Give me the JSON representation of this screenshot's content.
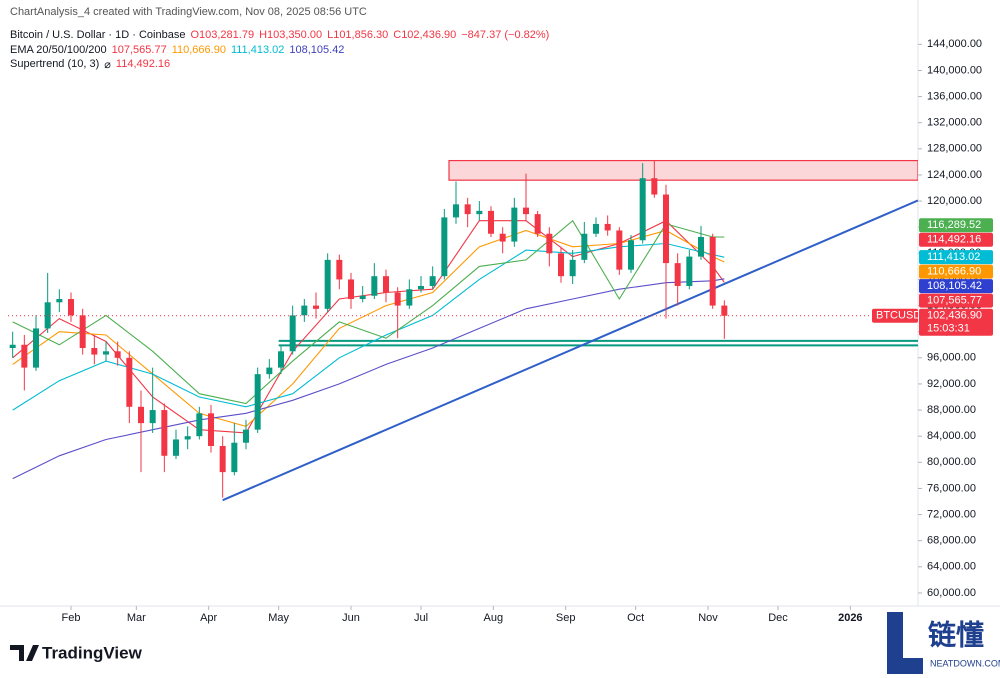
{
  "header": {
    "credit": "ChartAnalysis_4 created with TradingView.com, Nov 08, 2025 08:56 UTC",
    "symbol": "Bitcoin / U.S. Dollar · 1D · Coinbase",
    "ohlc": [
      "O103,281.79",
      "H103,350.00",
      "L101,856.30",
      "C102,436.90",
      "−847.37 (−0.82%)"
    ],
    "ema_label": "EMA 20/50/100/200",
    "ema_values": [
      {
        "text": "107,565.77",
        "color": "#f23645"
      },
      {
        "text": "110,666.90",
        "color": "#ff9800"
      },
      {
        "text": "111,413.02",
        "color": "#00bcd4"
      },
      {
        "text": "108,105.42",
        "color": "#3f3fbf"
      }
    ],
    "supertrend_label": "Supertrend (10, 3)",
    "supertrend_symbol": "⌀",
    "supertrend_value": "114,492.16"
  },
  "chart_data": {
    "type": "candlestick",
    "x": [
      6,
      11,
      16,
      21,
      26,
      31,
      36,
      41,
      46,
      51,
      56,
      61,
      66,
      71,
      76,
      81,
      86,
      91,
      96,
      101,
      106,
      111,
      116,
      121,
      126,
      131,
      136,
      141,
      146,
      151,
      156,
      161,
      166,
      171,
      176,
      181,
      186,
      191,
      196,
      201,
      206,
      211,
      216,
      221,
      226,
      231,
      236,
      241,
      246,
      251,
      256,
      261,
      266,
      271,
      276,
      281,
      286,
      291,
      296,
      301,
      306,
      311
    ],
    "open": [
      97500,
      98000,
      94500,
      100500,
      104500,
      105000,
      102500,
      97500,
      96500,
      97000,
      96000,
      88500,
      86000,
      88000,
      81000,
      83500,
      84000,
      87500,
      82500,
      78500,
      83000,
      85000,
      93500,
      94500,
      97000,
      102500,
      104000,
      103500,
      111000,
      108000,
      105000,
      105500,
      108500,
      106000,
      104000,
      106500,
      107000,
      108500,
      117500,
      119500,
      118000,
      118500,
      115000,
      113800,
      119000,
      118000,
      115000,
      112000,
      108500,
      111000,
      115000,
      116500,
      115500,
      109500,
      114000,
      123500,
      121000,
      110500,
      107000,
      111500,
      114500,
      104000
    ],
    "high": [
      100000,
      99500,
      102500,
      109000,
      106500,
      106000,
      103500,
      99500,
      98500,
      98500,
      97000,
      91000,
      94500,
      89000,
      85000,
      85500,
      88500,
      88800,
      84000,
      86000,
      86500,
      94500,
      95800,
      97800,
      104000,
      105000,
      106000,
      112000,
      111800,
      109000,
      107000,
      110500,
      109500,
      106800,
      108000,
      108500,
      110000,
      118800,
      123000,
      120500,
      120000,
      119200,
      116000,
      120500,
      124200,
      118500,
      116000,
      113000,
      112500,
      116800,
      117500,
      117800,
      116000,
      114800,
      125800,
      126200,
      122500,
      112000,
      112500,
      116200,
      115000,
      104800
    ],
    "low": [
      96000,
      91000,
      94000,
      99800,
      103000,
      101500,
      96500,
      95000,
      95500,
      94800,
      86000,
      78500,
      84500,
      78500,
      80500,
      82000,
      83500,
      81500,
      74600,
      78000,
      82000,
      84500,
      92800,
      93500,
      96500,
      101500,
      102000,
      103000,
      106500,
      103500,
      104500,
      105000,
      104500,
      99000,
      103500,
      106000,
      106500,
      108000,
      116500,
      116000,
      117000,
      114500,
      112000,
      113000,
      117000,
      114500,
      110000,
      107500,
      107300,
      110500,
      114500,
      114700,
      108700,
      109000,
      113500,
      120500,
      102000,
      104000,
      106500,
      111000,
      103500,
      98900
    ],
    "close": [
      98000,
      94500,
      100500,
      104500,
      105000,
      102500,
      97500,
      96500,
      97000,
      96000,
      88500,
      86000,
      88000,
      81000,
      83500,
      84000,
      87500,
      82500,
      78500,
      83000,
      85000,
      93500,
      94500,
      97000,
      102500,
      104000,
      103500,
      111000,
      108000,
      105000,
      105500,
      108500,
      106000,
      104000,
      106500,
      107000,
      108500,
      117500,
      119500,
      118000,
      118500,
      115000,
      113800,
      119000,
      118000,
      115000,
      112000,
      108500,
      111000,
      115000,
      116500,
      115500,
      109500,
      114000,
      123500,
      121000,
      110500,
      107000,
      111500,
      114500,
      104000,
      102437
    ],
    "up_color": "#089981",
    "down_color": "#f23645",
    "line_x": [
      6,
      26,
      46,
      66,
      86,
      106,
      126,
      146,
      166,
      186,
      206,
      226,
      246,
      266,
      286,
      306,
      311
    ],
    "lines": [
      {
        "color": "#f23645",
        "values": [
          96000,
          102000,
          98500,
          90000,
          85000,
          84500,
          97000,
          105000,
          106000,
          106500,
          117000,
          117000,
          111500,
          113500,
          117000,
          110000,
          107565.77
        ]
      },
      {
        "color": "#ff9800",
        "values": [
          95000,
          100000,
          99500,
          93500,
          87500,
          85500,
          92000,
          100500,
          104000,
          106000,
          113000,
          115500,
          113000,
          113500,
          115500,
          111500,
          110666.9
        ]
      },
      {
        "color": "#00bcd4",
        "values": [
          88000,
          92500,
          95500,
          93500,
          90000,
          88500,
          90500,
          96000,
          99500,
          102500,
          108000,
          112500,
          112000,
          113000,
          113500,
          111800,
          111413.02
        ]
      },
      {
        "color": "#5b4fc9",
        "values": [
          77500,
          81000,
          83500,
          85000,
          86500,
          87500,
          89500,
          92000,
          95000,
          97500,
          100500,
          103500,
          105000,
          106500,
          107500,
          107800,
          108105.42
        ]
      },
      {
        "color": "#4caf50",
        "values": [
          101500,
          98000,
          102500,
          97000,
          90500,
          89000,
          95500,
          101500,
          99000,
          104000,
          110000,
          111000,
          117000,
          105000,
          116500,
          114500,
          114492.16
        ]
      }
    ],
    "zones": [
      {
        "x": 193,
        "low": 123200,
        "high": 126200,
        "color": "#f23645"
      },
      {
        "x": 120,
        "low": 97900,
        "high": 98600,
        "color": "#089981"
      }
    ],
    "trendline": {
      "x": [
        96,
        394
      ],
      "y": [
        74200,
        120100
      ],
      "color": "#2f5fc9"
    },
    "xlim": [
      4,
      394
    ],
    "ylim": [
      58000,
      146500
    ],
    "xticks": [
      {
        "value": 31,
        "label": "Feb"
      },
      {
        "value": 59,
        "label": "Mar"
      },
      {
        "value": 90,
        "label": "Apr"
      },
      {
        "value": 120,
        "label": "May"
      },
      {
        "value": 151,
        "label": "Jun"
      },
      {
        "value": 181,
        "label": "Jul"
      },
      {
        "value": 212,
        "label": "Aug"
      },
      {
        "value": 243,
        "label": "Sep"
      },
      {
        "value": 273,
        "label": "Oct"
      },
      {
        "value": 304,
        "label": "Nov"
      },
      {
        "value": 334,
        "label": "Dec"
      },
      {
        "value": 365,
        "label": "2026"
      }
    ],
    "yticks": [
      {
        "value": 60000,
        "label": "60,000.00"
      },
      {
        "value": 64000,
        "label": "64,000.00"
      },
      {
        "value": 68000,
        "label": "68,000.00"
      },
      {
        "value": 72000,
        "label": "72,000.00"
      },
      {
        "value": 76000,
        "label": "76,000.00"
      },
      {
        "value": 80000,
        "label": "80,000.00"
      },
      {
        "value": 84000,
        "label": "84,000.00"
      },
      {
        "value": 88000,
        "label": "88,000.00"
      },
      {
        "value": 92000,
        "label": "92,000.00"
      },
      {
        "value": 96000,
        "label": "96,000.00"
      },
      {
        "value": 100000,
        "label": "100,000.00"
      },
      {
        "value": 104000,
        "label": "104,000.00"
      },
      {
        "value": 108000,
        "label": "108,000.00"
      },
      {
        "value": 112000,
        "label": "112,000.00"
      },
      {
        "value": 116000,
        "label": "116,000.00"
      },
      {
        "value": 120000,
        "label": "120,000.00"
      },
      {
        "value": 124000,
        "label": "124,000.00"
      },
      {
        "value": 128000,
        "label": "128,000.00"
      },
      {
        "value": 132000,
        "label": "132,000.00"
      },
      {
        "value": 136000,
        "label": "136,000.00"
      },
      {
        "value": 140000,
        "label": "140,000.00"
      },
      {
        "value": 144000,
        "label": "144,000.00"
      }
    ],
    "grid": false,
    "price_labels": [
      {
        "value": 116289.52,
        "label": "116,289.52",
        "color": "#4caf50"
      },
      {
        "value": 114492.16,
        "label": "114,492.16",
        "color": "#f23645"
      },
      {
        "value": 111413.02,
        "label": "111,413.02",
        "color": "#00bcd4"
      },
      {
        "value": 110666.9,
        "label": "110,666.90",
        "color": "#ff9800"
      },
      {
        "value": 108105.42,
        "label": "108,105.42",
        "color": "#2f3fd0"
      },
      {
        "value": 107565.77,
        "label": "107,565.77",
        "color": "#f23645"
      }
    ],
    "last_price": {
      "symbol": "BTCUSD",
      "value": 102436.9,
      "label": "102,436.90",
      "countdown": "15:03:31",
      "color": "#f23645"
    }
  },
  "footer": {
    "brand": "TradingView",
    "watermark": "链懂",
    "watermark_site": "NEATDOWN.COM"
  }
}
